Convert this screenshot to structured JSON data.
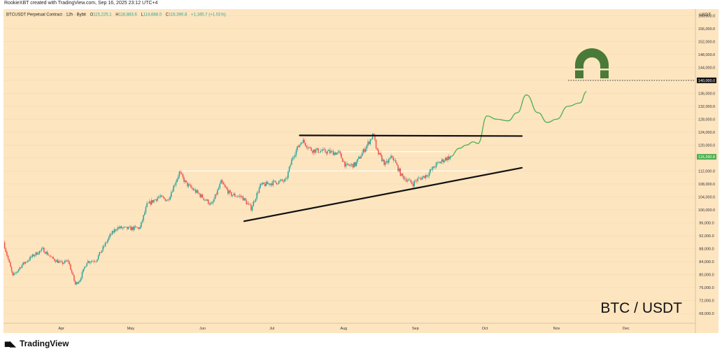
{
  "credit": "RookieXBT created with TradingView.com, Sep 16, 2025 23:12 UTC+4",
  "header": {
    "symbol": "BTCUSDT Perpetual Contract · 12h · Bybit",
    "open_label": "O",
    "open": "115,225.1",
    "high_label": "H",
    "high": "116,883.6",
    "low_label": "L",
    "low": "114,688.0",
    "close_label": "C",
    "close": "116,390.8",
    "change": "+1,165.7 (+1.01%)"
  },
  "brand": "TradingView",
  "watermark": "BTC / USDT",
  "colors": {
    "up": "#26a69a",
    "down": "#ef5350",
    "background": "#fde5c0",
    "projection": "#4caf50",
    "price_tag": "#4caf50",
    "magnet": "#4a7a3a"
  },
  "chart_data": {
    "type": "candlestick",
    "title": "BTCUSDT Perpetual Contract · 12h · Bybit",
    "y_axis": {
      "label": "USDT",
      "ylim": [
        65000,
        162000
      ],
      "ticks": [
        "160,000.0",
        "156,000.0",
        "152,000.0",
        "148,000.0",
        "144,000.0",
        "140,000.0",
        "136,000.0",
        "132,000.0",
        "128,000.0",
        "124,000.0",
        "120,000.0",
        "116,000.0",
        "112,000.0",
        "108,000.0",
        "104,000.0",
        "100,000.0",
        "96,000.0",
        "92,000.0",
        "88,000.0",
        "84,000.0",
        "80,000.0",
        "76,000.0",
        "72,000.0",
        "68,000.0"
      ],
      "tick_values": [
        160000,
        156000,
        152000,
        148000,
        144000,
        140000,
        136000,
        132000,
        128000,
        124000,
        120000,
        116000,
        112000,
        108000,
        104000,
        100000,
        96000,
        92000,
        88000,
        84000,
        80000,
        76000,
        72000,
        68000
      ]
    },
    "x_axis": {
      "range": [
        "2025-03-07",
        "2025-12-31"
      ],
      "ticks": [
        "Apr",
        "May",
        "Jun",
        "Jul",
        "Aug",
        "Sep",
        "Oct",
        "Nov",
        "Dec"
      ],
      "tick_dates": [
        "2025-04-01",
        "2025-05-01",
        "2025-06-01",
        "2025-07-01",
        "2025-08-01",
        "2025-09-01",
        "2025-10-01",
        "2025-11-01",
        "2025-12-01"
      ]
    },
    "price_path": [
      [
        "2025-03-07",
        90000
      ],
      [
        "2025-03-11",
        79500
      ],
      [
        "2025-03-15",
        83000
      ],
      [
        "2025-03-20",
        86000
      ],
      [
        "2025-03-24",
        87800
      ],
      [
        "2025-03-28",
        85000
      ],
      [
        "2025-04-01",
        83500
      ],
      [
        "2025-04-04",
        84200
      ],
      [
        "2025-04-07",
        77000
      ],
      [
        "2025-04-09",
        78500
      ],
      [
        "2025-04-12",
        84000
      ],
      [
        "2025-04-16",
        84500
      ],
      [
        "2025-04-22",
        92000
      ],
      [
        "2025-04-25",
        94500
      ],
      [
        "2025-04-30",
        94200
      ],
      [
        "2025-05-05",
        94500
      ],
      [
        "2025-05-08",
        101500
      ],
      [
        "2025-05-13",
        104000
      ],
      [
        "2025-05-17",
        103000
      ],
      [
        "2025-05-22",
        111500
      ],
      [
        "2025-05-25",
        108000
      ],
      [
        "2025-05-31",
        104500
      ],
      [
        "2025-06-05",
        101500
      ],
      [
        "2025-06-09",
        108500
      ],
      [
        "2025-06-13",
        104800
      ],
      [
        "2025-06-18",
        104000
      ],
      [
        "2025-06-22",
        100500
      ],
      [
        "2025-06-26",
        107500
      ],
      [
        "2025-07-02",
        108500
      ],
      [
        "2025-07-07",
        109000
      ],
      [
        "2025-07-10",
        116500
      ],
      [
        "2025-07-14",
        121500
      ],
      [
        "2025-07-18",
        118500
      ],
      [
        "2025-07-24",
        118000
      ],
      [
        "2025-07-30",
        117500
      ],
      [
        "2025-08-02",
        113500
      ],
      [
        "2025-08-06",
        114000
      ],
      [
        "2025-08-09",
        117500
      ],
      [
        "2025-08-14",
        123500
      ],
      [
        "2025-08-15",
        118500
      ],
      [
        "2025-08-19",
        114000
      ],
      [
        "2025-08-22",
        116500
      ],
      [
        "2025-08-26",
        110500
      ],
      [
        "2025-08-31",
        108000
      ],
      [
        "2025-09-01",
        109000
      ],
      [
        "2025-09-06",
        110800
      ],
      [
        "2025-09-10",
        114000
      ],
      [
        "2025-09-14",
        115800
      ],
      [
        "2025-09-16",
        116390.8
      ]
    ],
    "projection": [
      [
        "2025-09-16",
        116390.8
      ],
      [
        "2025-09-20",
        119000
      ],
      [
        "2025-09-23",
        120000
      ],
      [
        "2025-09-26",
        121000
      ],
      [
        "2025-09-28",
        120500
      ],
      [
        "2025-10-02",
        129000
      ],
      [
        "2025-10-06",
        128000
      ],
      [
        "2025-10-11",
        127500
      ],
      [
        "2025-10-15",
        130000
      ],
      [
        "2025-10-19",
        135500
      ],
      [
        "2025-10-24",
        130000
      ],
      [
        "2025-10-28",
        127000
      ],
      [
        "2025-11-01",
        128000
      ],
      [
        "2025-11-06",
        132000
      ],
      [
        "2025-11-11",
        133000
      ],
      [
        "2025-11-14",
        136500
      ]
    ],
    "trendlines": [
      {
        "role": "resistance",
        "from": [
          "2025-07-13",
          123000
        ],
        "to": [
          "2025-10-17",
          122800
        ]
      },
      {
        "role": "support",
        "from": [
          "2025-06-19",
          96500
        ],
        "to": [
          "2025-10-17",
          113000
        ]
      }
    ],
    "horizontal_levels": [
      {
        "value": 112000,
        "from": "2025-05-22",
        "to": "2025-10-02"
      },
      {
        "value": 118000,
        "from": "2025-07-17",
        "to": "2025-09-16"
      }
    ],
    "target": {
      "value": 140000,
      "label": "140,000.0",
      "from": "2025-11-06"
    },
    "last_price": {
      "value": 116390.8,
      "label": "116,390.8"
    }
  }
}
